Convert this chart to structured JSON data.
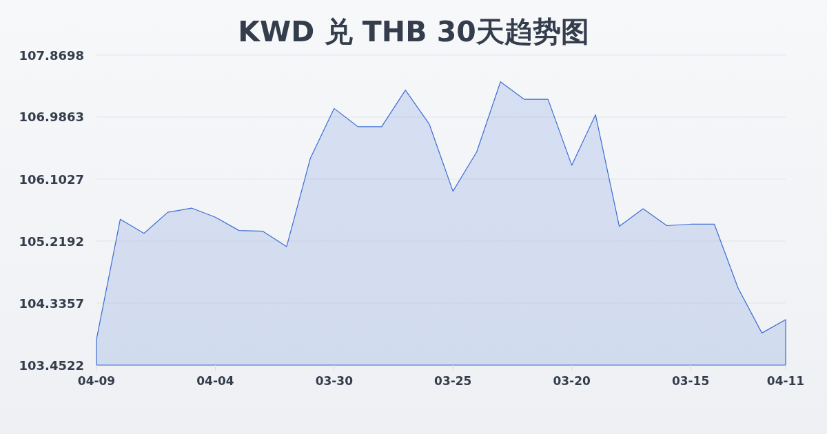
{
  "chart_data": {
    "type": "area",
    "title": "KWD 兑 THB 30天趋势图",
    "categories": [
      "04-09",
      null,
      null,
      null,
      null,
      "04-04",
      null,
      null,
      null,
      null,
      "03-30",
      null,
      null,
      null,
      null,
      "03-25",
      null,
      null,
      null,
      null,
      "03-20",
      null,
      null,
      null,
      null,
      "03-15",
      null,
      null,
      null,
      "04-11"
    ],
    "values": [
      103.82,
      105.53,
      105.33,
      105.63,
      105.69,
      105.56,
      105.37,
      105.36,
      105.14,
      106.4,
      107.11,
      106.85,
      106.85,
      107.37,
      106.89,
      105.93,
      106.49,
      107.49,
      107.24,
      107.24,
      106.3,
      107.02,
      105.43,
      105.68,
      105.44,
      105.46,
      105.46,
      104.55,
      103.91,
      104.1
    ],
    "color": "#3b6cd4",
    "ylim": [
      103.4522,
      107.8698
    ],
    "yticks": [
      103.4522,
      104.3357,
      105.2192,
      106.1027,
      106.9863,
      107.8698
    ],
    "grid": "y"
  }
}
